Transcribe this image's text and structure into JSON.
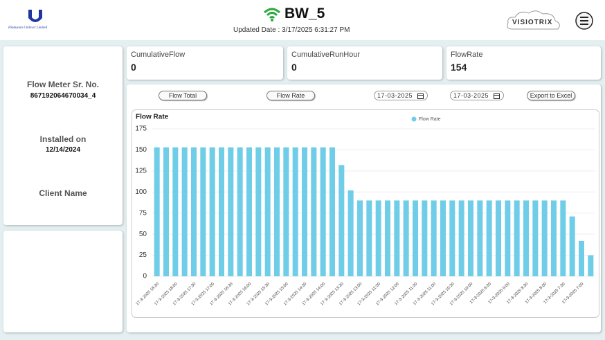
{
  "header": {
    "company": "Hindustan Unilever Limited",
    "device": "BW_5",
    "updated": "Updated Date : 3/17/2025 6:31:27 PM",
    "brand": "VISIOTRIX"
  },
  "info": {
    "serial_label": "Flow Meter Sr. No.",
    "serial": "867192064670034_4",
    "installed_label": "Installed on",
    "installed": "12/14/2024",
    "client_label": "Client Name"
  },
  "cards": [
    {
      "label": "CumulativeFlow",
      "value": 0
    },
    {
      "label": "CumulativeRunHour",
      "value": 0
    },
    {
      "label": "FlowRate",
      "value": 154
    }
  ],
  "controls": {
    "buttons": [
      "Flow Total",
      "Flow Rate"
    ],
    "dates": [
      "17-03-2025",
      "17-03-2025"
    ],
    "export": "Export to Excel"
  },
  "chart_data": {
    "type": "bar",
    "title": "Flow Rate",
    "categories": [
      "17-3-2025 18:30",
      null,
      "17-3-2025 18:00",
      null,
      "17-3-2025 17:30",
      null,
      "17-3-2025 17:00",
      null,
      "17-3-2025 16:30",
      null,
      "17-3-2025 16:00",
      null,
      "17-3-2025 15:30",
      null,
      "17-3-2025 15:00",
      null,
      "17-3-2025 14:30",
      null,
      "17-3-2025 14:00",
      null,
      "17-3-2025 13:30",
      null,
      "17-3-2025 13:00",
      null,
      "17-3-2025 12:30",
      null,
      "17-3-2025 12:00",
      null,
      "17-3-2025 11:30",
      null,
      "17-3-2025 11:00",
      null,
      "17-3-2025 10:30",
      null,
      "17-3-2025 10:00",
      null,
      "17-3-2025 9:30",
      null,
      "17-3-2025 9:00",
      null,
      "17-3-2025 8:30",
      null,
      "17-3-2025 8:00",
      null,
      "17-3-2025 7:30",
      null,
      "17-3-2025 7:00",
      null
    ],
    "series": [
      {
        "name": "Flow Rate",
        "color": "#6fcde8",
        "values": [
          153,
          153,
          153,
          153,
          153,
          153,
          153,
          153,
          153,
          153,
          153,
          153,
          153,
          153,
          153,
          153,
          153,
          153,
          153,
          153,
          132,
          102,
          90,
          90,
          90,
          90,
          90,
          90,
          90,
          90,
          90,
          90,
          90,
          90,
          90,
          90,
          90,
          90,
          90,
          90,
          90,
          90,
          90,
          90,
          90,
          71,
          42,
          25
        ]
      }
    ],
    "ylim": [
      0,
      175
    ],
    "yticks": [
      0,
      25,
      50,
      75,
      100,
      125,
      150,
      175
    ],
    "grid": true
  }
}
